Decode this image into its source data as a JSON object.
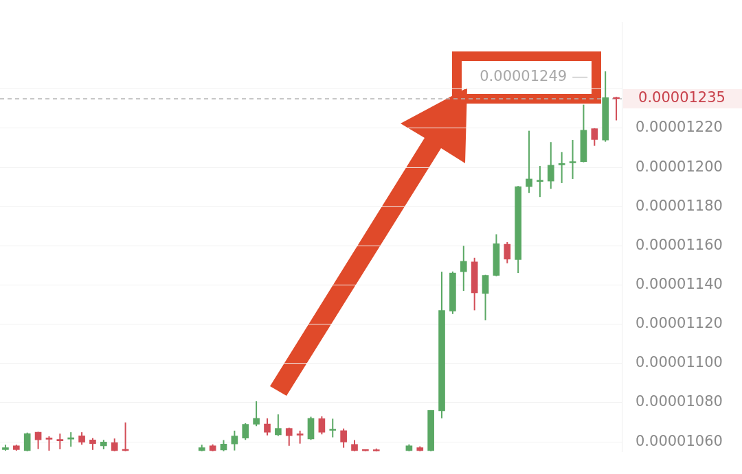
{
  "chart_data": {
    "type": "candlestick",
    "categories": [
      null,
      null,
      null,
      null,
      null,
      null,
      null,
      null,
      null,
      null,
      null,
      null,
      null,
      null,
      null,
      null,
      null,
      null,
      null,
      null,
      null,
      null,
      null,
      null,
      null,
      null,
      null,
      null,
      null,
      null,
      null,
      null,
      null,
      null,
      null,
      null,
      null,
      null,
      null,
      null,
      null,
      null,
      null,
      null,
      null,
      null,
      null,
      null,
      null,
      null,
      null,
      null,
      null,
      null,
      null,
      null,
      null
    ],
    "ohlc": [
      [
        1.056e-05,
        1.0585e-05,
        1.0555e-05,
        1.057e-05
      ],
      [
        1.058e-05,
        1.0585e-05,
        1.0555e-05,
        1.056e-05
      ],
      [
        1.0555e-05,
        1.0647e-05,
        1.0552e-05,
        1.0642e-05
      ],
      [
        1.0649e-05,
        1.0651e-05,
        1.0563e-05,
        1.061e-05
      ],
      [
        1.0618e-05,
        1.0628e-05,
        1.0555e-05,
        1.0613e-05
      ],
      [
        1.061e-05,
        1.0642e-05,
        1.0562e-05,
        1.0605e-05
      ],
      [
        1.0614e-05,
        1.0649e-05,
        1.0575e-05,
        1.062e-05
      ],
      [
        1.0631e-05,
        1.0649e-05,
        1.0585e-05,
        1.0598e-05
      ],
      [
        1.061e-05,
        1.0619e-05,
        1.0559e-05,
        1.0591e-05
      ],
      [
        1.058e-05,
        1.061e-05,
        1.0562e-05,
        1.0599e-05
      ],
      [
        1.0596e-05,
        1.0617e-05,
        1.0552e-05,
        1.0555e-05
      ],
      [
        1.056e-05,
        1.0699e-05,
        1.0552e-05,
        1.0555e-05
      ],
      null,
      null,
      null,
      null,
      null,
      null,
      [
        1.0555e-05,
        1.0585e-05,
        1.0552e-05,
        1.057e-05
      ],
      [
        1.058e-05,
        1.0587e-05,
        1.0552e-05,
        1.0555e-05
      ],
      [
        1.0559e-05,
        1.0609e-05,
        1.0552e-05,
        1.0589e-05
      ],
      [
        1.0589e-05,
        1.0657e-05,
        1.0556e-05,
        1.063e-05
      ],
      [
        1.0619e-05,
        1.0695e-05,
        1.061e-05,
        1.0689e-05
      ],
      [
        1.069e-05,
        1.0807e-05,
        1.068e-05,
        1.072e-05
      ],
      [
        1.0691e-05,
        1.072e-05,
        1.0633e-05,
        1.0649e-05
      ],
      [
        1.0636e-05,
        1.074e-05,
        1.063e-05,
        1.0668e-05
      ],
      [
        1.0668e-05,
        1.0672e-05,
        1.058e-05,
        1.0631e-05
      ],
      [
        1.0638e-05,
        1.0657e-05,
        1.0591e-05,
        1.0634e-05
      ],
      [
        1.0615e-05,
        1.0728e-05,
        1.061e-05,
        1.072e-05
      ],
      [
        1.0718e-05,
        1.073e-05,
        1.0638e-05,
        1.0649e-05
      ],
      [
        1.0658e-05,
        1.0718e-05,
        1.0623e-05,
        1.0661e-05
      ],
      [
        1.0657e-05,
        1.0668e-05,
        1.057e-05,
        1.0599e-05
      ],
      [
        1.0587e-05,
        1.0609e-05,
        1.0552e-05,
        1.0555e-05
      ],
      [
        1.0556e-05,
        1.056e-05,
        1.0552e-05,
        1.0554e-05
      ],
      [
        1.0555e-05,
        1.0566e-05,
        1.0551e-05,
        1.0553e-05
      ],
      null,
      null,
      [
        1.0555e-05,
        1.0587e-05,
        1.0552e-05,
        1.058e-05
      ],
      [
        1.057e-05,
        1.0577e-05,
        1.0552e-05,
        1.0555e-05
      ],
      [
        1.0555e-05,
        1.0762e-05,
        1.0552e-05,
        1.076e-05
      ],
      [
        1.0758e-05,
        1.1468e-05,
        1.072e-05,
        1.127e-05
      ],
      [
        1.1267e-05,
        1.1469e-05,
        1.1252e-05,
        1.1461e-05
      ],
      [
        1.1468e-05,
        1.16e-05,
        1.137e-05,
        1.1521e-05
      ],
      [
        1.1518e-05,
        1.1539e-05,
        1.1271e-05,
        1.136e-05
      ],
      [
        1.1357e-05,
        1.1452e-05,
        1.122e-05,
        1.1449e-05
      ],
      [
        1.1449e-05,
        1.1659e-05,
        1.1445e-05,
        1.1611e-05
      ],
      [
        1.1608e-05,
        1.1619e-05,
        1.1511e-05,
        1.1532e-05
      ],
      [
        1.153e-05,
        1.1905e-05,
        1.1461e-05,
        1.1902e-05
      ],
      [
        1.1902e-05,
        1.2187e-05,
        1.187e-05,
        1.1941e-05
      ],
      [
        1.1928e-05,
        1.2007e-05,
        1.1849e-05,
        1.1933e-05
      ],
      [
        1.193e-05,
        1.2129e-05,
        1.1891e-05,
        1.2011e-05
      ],
      [
        1.2013e-05,
        1.2078e-05,
        1.192e-05,
        1.2018e-05
      ],
      [
        1.2023e-05,
        1.214e-05,
        1.1941e-05,
        1.203e-05
      ],
      [
        1.2029e-05,
        1.232e-05,
        1.2026e-05,
        1.219e-05
      ],
      [
        1.2198e-05,
        1.22e-05,
        1.211e-05,
        1.2142e-05
      ],
      [
        1.214e-05,
        1.249e-05,
        1.2131e-05,
        1.2356e-05
      ],
      [
        1.2356e-05,
        1.236e-05,
        1.224e-05,
        1.235e-05
      ]
    ],
    "colors": [
      "#5aa864",
      "#d24d57",
      "#5aa864",
      "#d24d57",
      "#d24d57",
      "#d24d57",
      "#5aa864",
      "#d24d57",
      "#d24d57",
      "#5aa864",
      "#d24d57",
      "#d24d57",
      null,
      null,
      null,
      null,
      null,
      null,
      "#5aa864",
      "#d24d57",
      "#5aa864",
      "#5aa864",
      "#5aa864",
      "#5aa864",
      "#d24d57",
      "#5aa864",
      "#d24d57",
      "#d24d57",
      "#5aa864",
      "#d24d57",
      "#5aa864",
      "#d24d57",
      "#d24d57",
      "#d24d57",
      "#d24d57",
      null,
      null,
      "#5aa864",
      "#d24d57",
      "#5aa864",
      "#5aa864",
      "#5aa864",
      "#5aa864",
      "#d24d57",
      "#5aa864",
      "#5aa864",
      "#d24d57",
      "#5aa864",
      "#5aa864",
      "#5aa864",
      "#5aa864",
      "#5aa864",
      "#5aa864",
      "#5aa864",
      "#d24d57",
      "#5aa864",
      "#d24d57"
    ],
    "ylim": [
      1.055e-05,
      1.274e-05
    ],
    "yticks": [
      {
        "value": 1.06e-05,
        "label": "0.00001060"
      },
      {
        "value": 1.08e-05,
        "label": "0.00001080"
      },
      {
        "value": 1.1e-05,
        "label": "0.00001100"
      },
      {
        "value": 1.12e-05,
        "label": "0.00001120"
      },
      {
        "value": 1.14e-05,
        "label": "0.00001140"
      },
      {
        "value": 1.16e-05,
        "label": "0.00001160"
      },
      {
        "value": 1.18e-05,
        "label": "0.00001180"
      },
      {
        "value": 1.2e-05,
        "label": "0.00001200"
      },
      {
        "value": 1.22e-05,
        "label": "0.00001220"
      },
      {
        "value": 1.24e-05,
        "label": null
      }
    ],
    "grid": "y",
    "tick_labels": "y",
    "ref_lines": [
      {
        "axis": "y",
        "value": 1.235e-05,
        "label": "0.00001235",
        "color": "#b4b4b4",
        "line_style": "dashed"
      }
    ],
    "annotations": [
      "0.00001249"
    ]
  }
}
